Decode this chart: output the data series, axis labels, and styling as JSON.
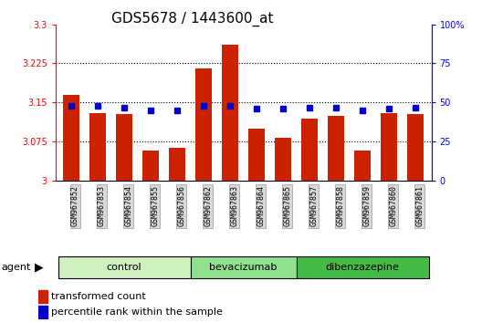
{
  "title": "GDS5678 / 1443600_at",
  "samples": [
    "GSM967852",
    "GSM967853",
    "GSM967854",
    "GSM967855",
    "GSM967856",
    "GSM967862",
    "GSM967863",
    "GSM967864",
    "GSM967865",
    "GSM967857",
    "GSM967858",
    "GSM967859",
    "GSM967860",
    "GSM967861"
  ],
  "red_values": [
    3.165,
    3.13,
    3.128,
    3.058,
    3.063,
    3.215,
    3.26,
    3.1,
    3.082,
    3.12,
    3.125,
    3.058,
    3.13,
    3.128
  ],
  "blue_values": [
    48,
    48,
    47,
    45,
    45,
    48,
    48,
    46,
    46,
    47,
    47,
    45,
    46,
    47
  ],
  "groups": [
    {
      "label": "control",
      "start": 0,
      "end": 5,
      "color": "#d0f0c0"
    },
    {
      "label": "bevacizumab",
      "start": 5,
      "end": 9,
      "color": "#90e090"
    },
    {
      "label": "dibenzazepine",
      "start": 9,
      "end": 14,
      "color": "#44bb44"
    }
  ],
  "ylim_left": [
    3.0,
    3.3
  ],
  "ylim_right": [
    0,
    100
  ],
  "yticks_left": [
    3.0,
    3.075,
    3.15,
    3.225,
    3.3
  ],
  "ytick_labels_left": [
    "3",
    "3.075",
    "3.15",
    "3.225",
    "3.3"
  ],
  "yticks_right": [
    0,
    25,
    50,
    75,
    100
  ],
  "ytick_labels_right": [
    "0",
    "25",
    "50",
    "75",
    "100%"
  ],
  "bar_color": "#cc2200",
  "dot_color": "#0000cc",
  "background_color": "#ffffff",
  "title_fontsize": 11,
  "tick_label_fontsize": 7,
  "sample_fontsize": 6,
  "group_fontsize": 8,
  "legend_fontsize": 8,
  "legend_labels": [
    "transformed count",
    "percentile rank within the sample"
  ],
  "label_bg_color": "#d8d8d8",
  "label_edge_color": "#999999"
}
